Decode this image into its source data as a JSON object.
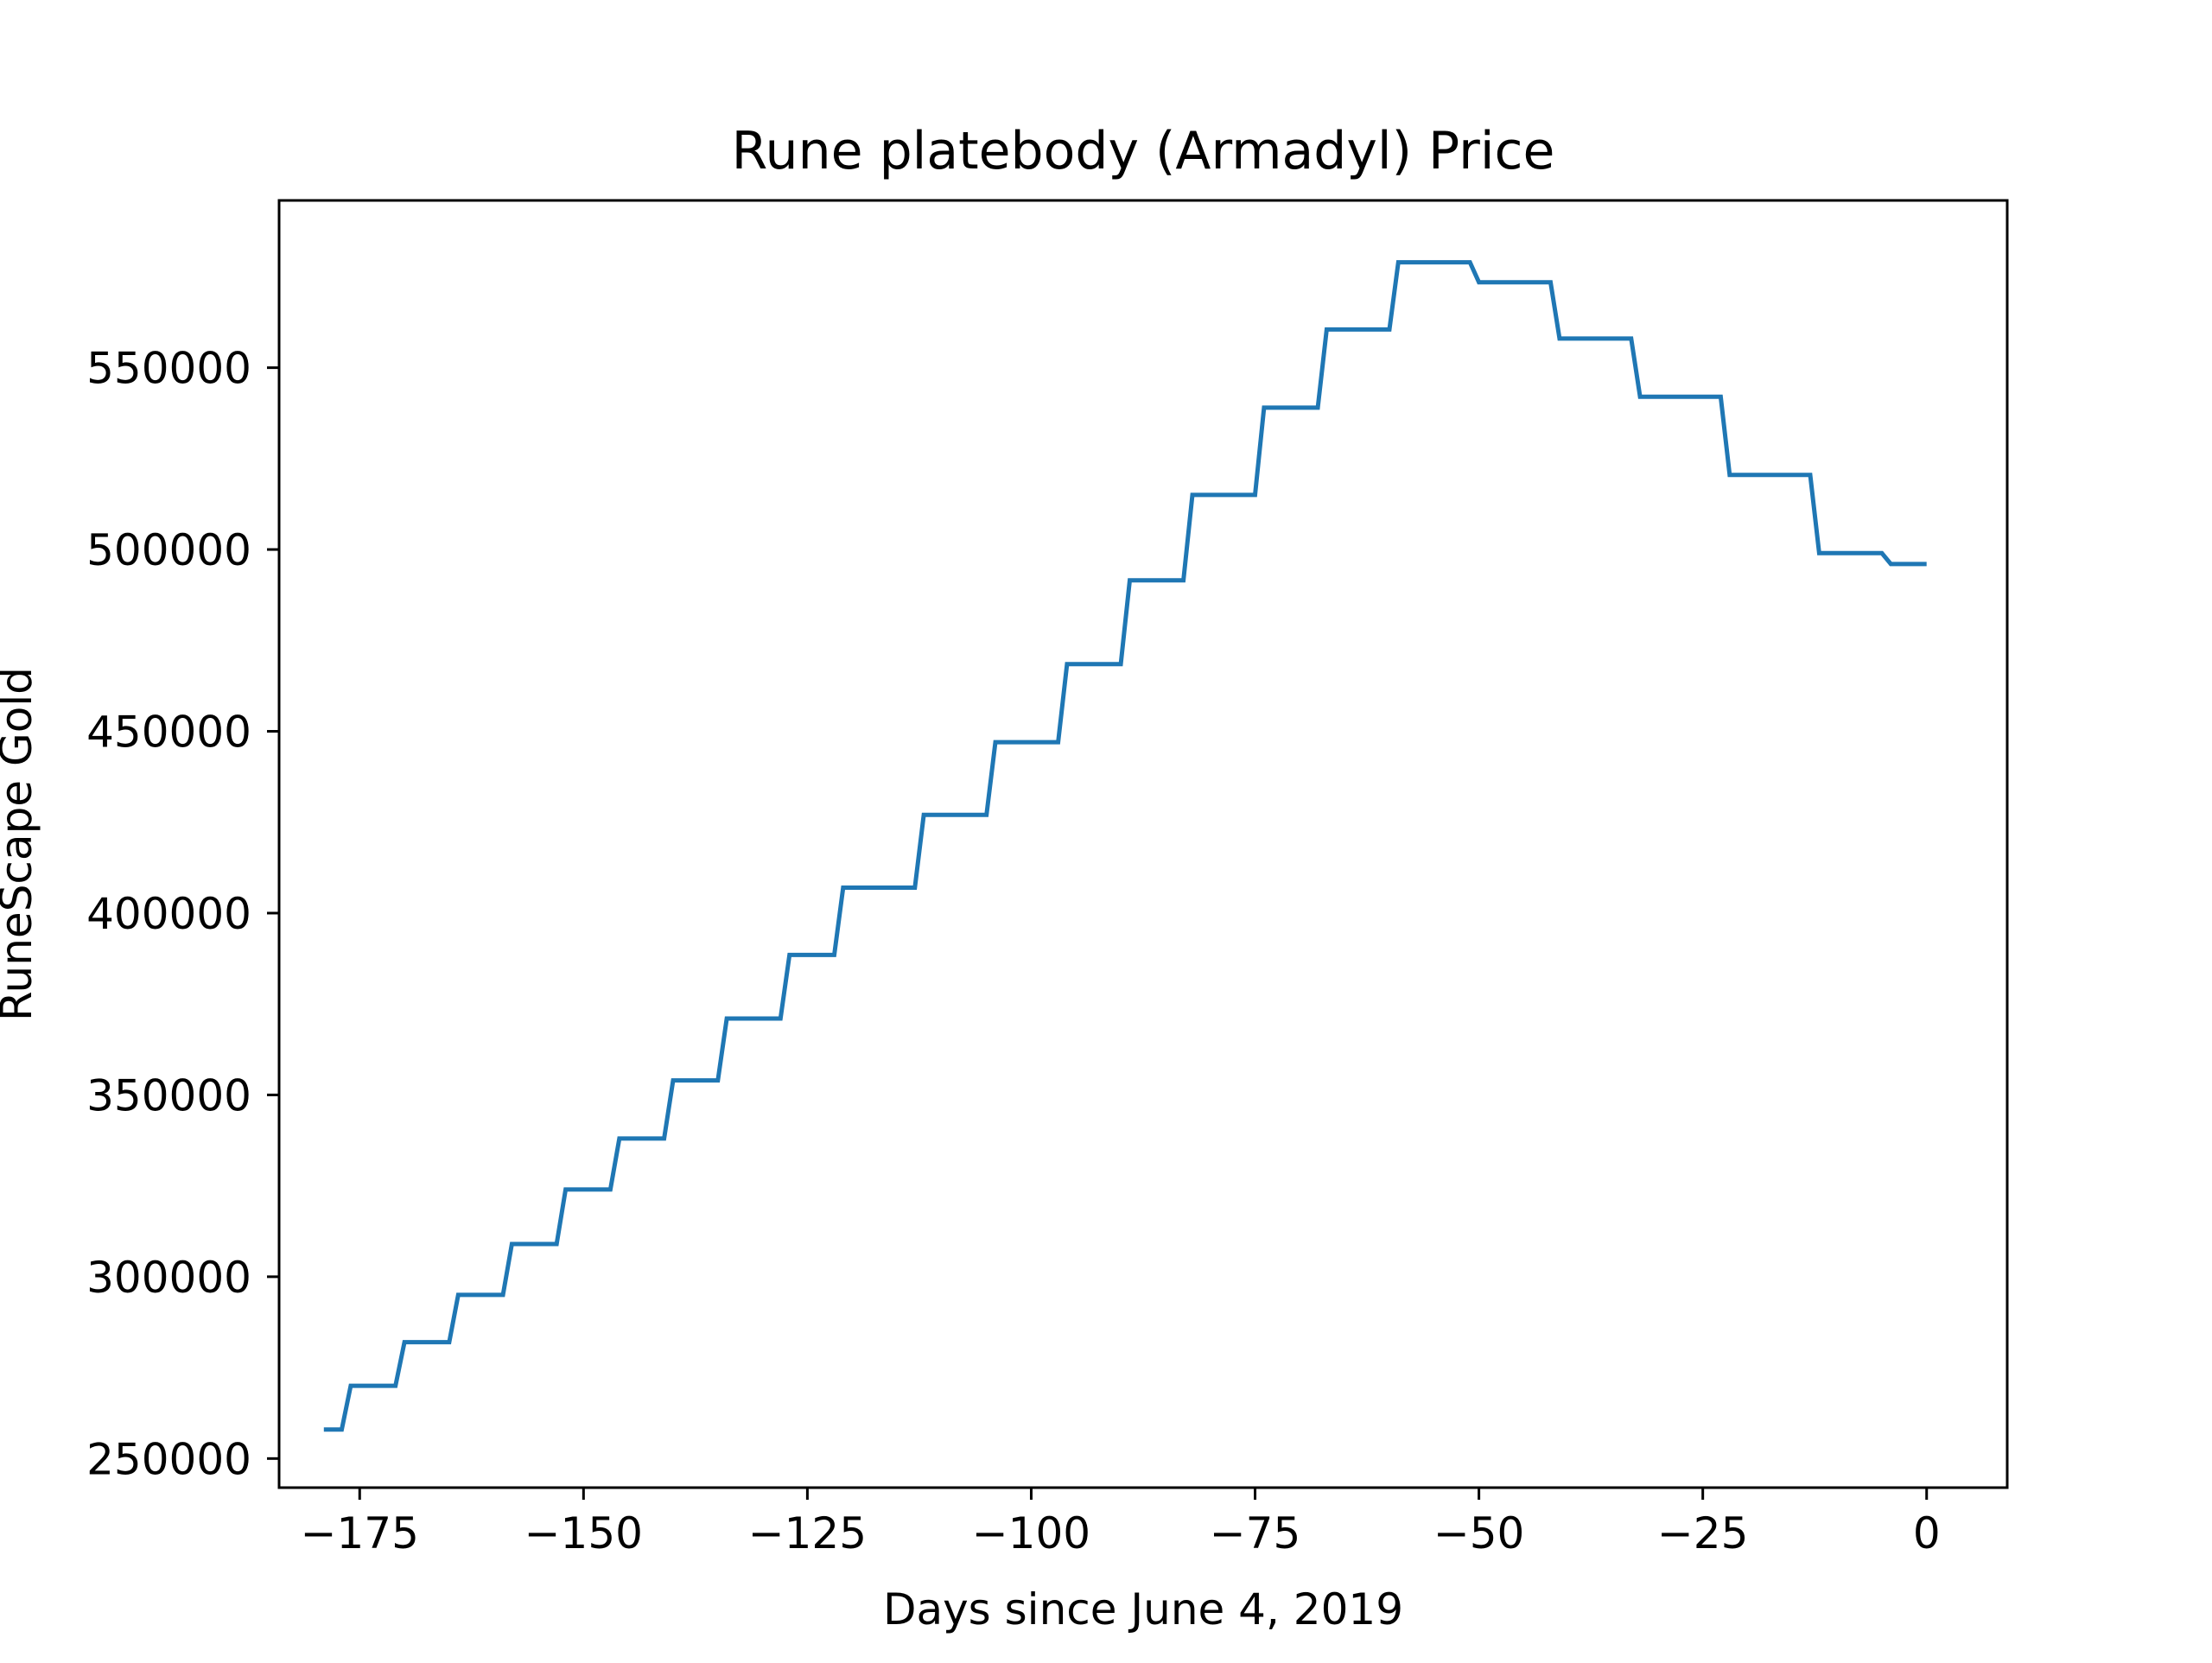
{
  "chart_data": {
    "type": "line",
    "title": "Rune platebody (Armadyl) Price",
    "xlabel": "Days since June 4, 2019",
    "ylabel": "RuneScape Gold",
    "xlim": [
      -184,
      9
    ],
    "ylim": [
      242000,
      596000
    ],
    "xticks": [
      -175,
      -150,
      -125,
      -100,
      -75,
      -50,
      -25,
      0
    ],
    "xtick_labels": [
      "−175",
      "−150",
      "−125",
      "−100",
      "−75",
      "−50",
      "−25",
      "0"
    ],
    "yticks": [
      250000,
      300000,
      350000,
      400000,
      450000,
      500000,
      550000
    ],
    "ytick_labels": [
      "250000",
      "300000",
      "350000",
      "400000",
      "450000",
      "500000",
      "550000"
    ],
    "grid": false,
    "legend": "none",
    "series": [
      {
        "color": "#1f77b4",
        "x": [
          -179,
          -177,
          -176,
          -171,
          -170,
          -165,
          -164,
          -159,
          -158,
          -153,
          -152,
          -147,
          -146,
          -141,
          -140,
          -135,
          -134,
          -128,
          -127,
          -122,
          -121,
          -113,
          -112,
          -105,
          -104,
          -97,
          -96,
          -90,
          -89,
          -83,
          -82,
          -75,
          -74,
          -68,
          -67,
          -60,
          -59,
          -51,
          -50,
          -42,
          -41,
          -33,
          -32,
          -23,
          -22,
          -13,
          -12,
          -5,
          -4,
          0
        ],
        "y": [
          258000,
          258000,
          270000,
          270000,
          282000,
          282000,
          295000,
          295000,
          309000,
          309000,
          324000,
          324000,
          338000,
          338000,
          354000,
          354000,
          371000,
          371000,
          388500,
          388500,
          407000,
          407000,
          427000,
          427000,
          447000,
          447000,
          468500,
          468500,
          491500,
          491500,
          515000,
          515000,
          539000,
          539000,
          560500,
          560500,
          579000,
          579000,
          573500,
          573500,
          558000,
          558000,
          542000,
          542000,
          520500,
          520500,
          499000,
          499000,
          496000,
          496000
        ]
      }
    ]
  }
}
